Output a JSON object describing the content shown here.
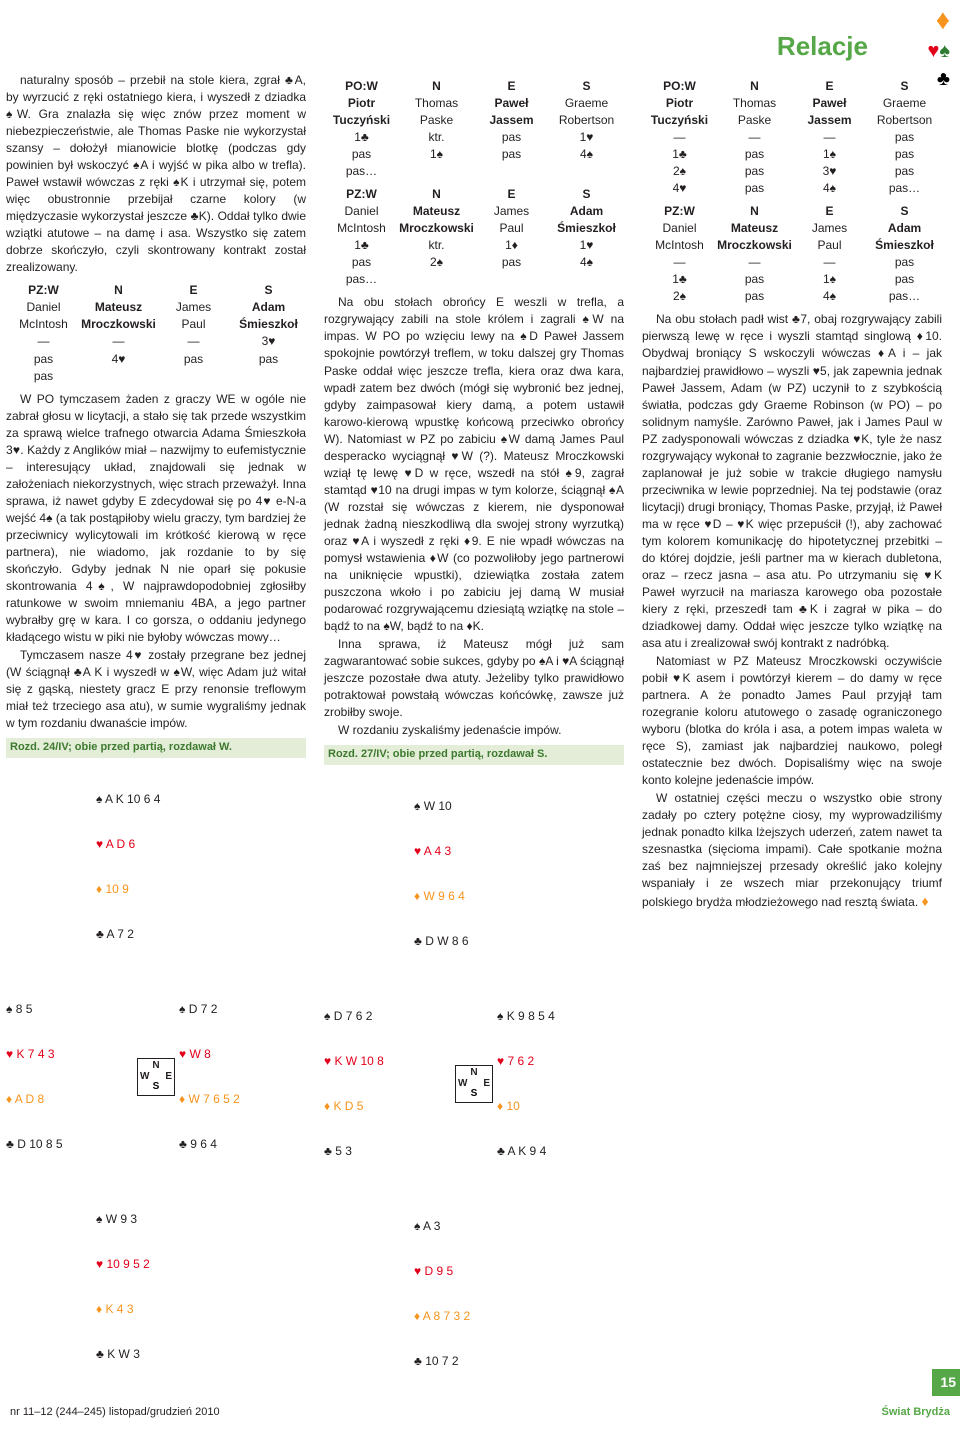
{
  "title": "Relacje",
  "logo": {
    "spade": "♠",
    "heart": "♥",
    "diamond": "♦",
    "club": "♣",
    "colors": {
      "spade": "#2e7d32",
      "heart": "#e2001a",
      "diamond": "#f7941d",
      "club": "#000"
    }
  },
  "col1": {
    "p1": "naturalny sposób – przebił na stole kiera, zgrał ♣A, by wyrzucić z ręki ostatniego kiera, i wyszedł z dziadka ♠W. Gra znalazła się więc znów przez moment w niebezpieczeństwie, ale Thomas Paske nie wykorzystał szansy – dołożył mianowicie blotkę (podczas gdy powinien był wskoczyć ♠A i wyjść w pika albo w trefla). Paweł wstawił wówczas z ręki ♠K i utrzymał się, potem więc obustronnie przebijał czarne kolory (w międzyczasie wykorzystał jeszcze ♣K). Oddał tylko dwie wziątki atutowe – na damę i asa. Wszystko się zatem dobrze skończyło, czyli skontrowany kontrakt został zrealizowany.",
    "bidPZ": {
      "hdr": [
        "PZ:W",
        "N",
        "E",
        "S"
      ],
      "names": [
        [
          "Daniel",
          "Mateusz",
          "James",
          "Adam"
        ],
        [
          "McIntosh",
          "Mroczkowski",
          "Paul",
          "Śmieszkoł"
        ]
      ],
      "rows": [
        [
          "—",
          "—",
          "—",
          "3♥"
        ],
        [
          "pas",
          "4♥",
          "pas",
          "pas"
        ],
        [
          "pas",
          "",
          "",
          ""
        ]
      ]
    },
    "p2": "W PO tymczasem żaden z graczy WE w ogóle nie zabrał głosu w licytacji, a stało się tak przede wszystkim za sprawą wielce trafnego otwarcia Adama Śmieszkoła 3♥. Każdy z Anglików miał – nazwijmy to eufemistycznie – interesujący układ, znajdowali się jednak w założeniach niekorzystnych, więc strach przeważył. Inna sprawa, iż nawet gdyby E zdecydował się po 4♥ e-N-a wejść 4♠ (a tak postąpiłoby wielu graczy, tym bardziej że przeciwnicy wylicytowali im krótkość kierową w ręce partnera), nie wiadomo, jak rozdanie to by się skończyło. Gdyby jednak N nie oparł się pokusie skontrowania 4♠, W najprawdopodobniej zgłosiłby ratunkowe w swoim mniemaniu 4BA, a jego partner wybrałby grę w kara. I co gorsza, o oddaniu jedynego kładącego wistu w piki nie byłoby wówczas mowy…",
    "p3": "Tymczasem nasze 4♥ zostały przegrane bez jednej (W ściągnął ♣A K i wyszedł w ♠W, więc Adam już witał się z gąską, niestety gracz E przy renonsie treflowym miał też trzeciego asa atu), w sumie wygraliśmy jednak w tym rozdaniu dwanaście impów.",
    "deal24": {
      "title": "Rozd. 24/IV; obie przed partią, rozdawał W.",
      "N": {
        "s": "A K 10 6 4",
        "h": "A D 6",
        "d": "10 9",
        "c": "A 7 2"
      },
      "W": {
        "s": "8 5",
        "h": "K 7 4 3",
        "d": "A D 8",
        "c": "D 10 8 5"
      },
      "E": {
        "s": "D 7 2",
        "h": "W 8",
        "d": "W 7 6 5 2",
        "c": "9 6 4"
      },
      "S": {
        "s": "W 9 3",
        "h": "10 9 5 2",
        "d": "K 4 3",
        "c": "K W 3"
      }
    }
  },
  "col2": {
    "bidPO": {
      "hdr": [
        "PO:W",
        "N",
        "E",
        "S"
      ],
      "names": [
        [
          "Piotr",
          "Thomas",
          "Paweł",
          "Graeme"
        ],
        [
          "Tuczyński",
          "Paske",
          "Jassem",
          "Robertson"
        ]
      ],
      "rows": [
        [
          "1♣",
          "ktr.",
          "pas",
          "1♥"
        ],
        [
          "pas",
          "1♠",
          "pas",
          "4♠"
        ],
        [
          "pas…",
          "",
          "",
          ""
        ]
      ]
    },
    "bidPZ": {
      "hdr": [
        "PZ:W",
        "N",
        "E",
        "S"
      ],
      "names": [
        [
          "Daniel",
          "Mateusz",
          "James",
          "Adam"
        ],
        [
          "McIntosh",
          "Mroczkowski",
          "Paul",
          "Śmieszkoł"
        ]
      ],
      "rows": [
        [
          "1♣",
          "ktr.",
          "1♦",
          "1♥"
        ],
        [
          "pas",
          "2♠",
          "pas",
          "4♠"
        ],
        [
          "pas…",
          "",
          "",
          ""
        ]
      ]
    },
    "p1": "Na obu stołach obrońcy E weszli w trefla, a rozgrywający zabili na stole królem i zagrali ♠W na impas. W PO po wzięciu lewy na ♠D Paweł Jassem spokojnie powtórzył treflem, w toku dalszej gry Thomas Paske oddał więc jeszcze trefla, kiera oraz dwa kara, wpadł zatem bez dwóch (mógł się wybronić bez jednej, gdyby zaimpasował kiery damą, a potem ustawił karowo-kierową wpustkę końcową przeciwko obrońcy W). Natomiast w PZ po zabiciu ♠W damą James Paul desperacko wyciągnął ♥W (?). Mateusz Mroczkowski wziął tę lewę ♥D w ręce, wszedł na stół ♠9, zagrał stamtąd ♥10 na drugi impas w tym kolorze, ściągnął ♠A (W rozstał się wówczas z kierem, nie dysponował jednak żadną nieszkodliwą dla swojej strony wyrzutką) oraz ♥A i wyszedł z ręki ♦9. E nie wpadł wówczas na pomysł wstawienia ♦W (co pozwoliłoby jego partnerowi na uniknięcie wpustki), dziewiątka została zatem puszczona wkoło i po zabiciu jej damą W musiał podarować rozgrywającemu dziesiątą wziątkę na stole – bądź to na ♠W, bądź to na ♦K.",
    "p2": "Inna sprawa, iż Mateusz mógł już sam zagwarantować sobie sukces, gdyby po ♠A i ♥A ściągnął jeszcze pozostałe dwa atuty. Jeżeliby tylko prawidłowo potraktował powstałą wówczas końcówkę, zawsze już zrobiłby swoje.",
    "p3": "W rozdaniu zyskaliśmy jedenaście impów.",
    "deal27": {
      "title": "Rozd. 27/IV; obie przed partią, rozdawał S.",
      "N": {
        "s": "W 10",
        "h": "A 4 3",
        "d": "W 9 6 4",
        "c": "D W 8 6"
      },
      "W": {
        "s": "D 7 6 2",
        "h": "K W 10 8",
        "d": "K D 5",
        "c": "5 3"
      },
      "E": {
        "s": "K 9 8 5 4",
        "h": "7 6 2",
        "d": "10",
        "c": "A K 9 4"
      },
      "S": {
        "s": "A 3",
        "h": "D 9 5",
        "d": "A 8 7 3 2",
        "c": "10 7 2"
      }
    }
  },
  "col3": {
    "bidPO": {
      "hdr": [
        "PO:W",
        "N",
        "E",
        "S"
      ],
      "names": [
        [
          "Piotr",
          "Thomas",
          "Paweł",
          "Graeme"
        ],
        [
          "Tuczyński",
          "Paske",
          "Jassem",
          "Robertson"
        ]
      ],
      "rows": [
        [
          "—",
          "—",
          "—",
          "pas"
        ],
        [
          "1♣",
          "pas",
          "1♠",
          "pas"
        ],
        [
          "2♠",
          "pas",
          "3♥",
          "pas"
        ],
        [
          "4♥",
          "pas",
          "4♠",
          "pas…"
        ]
      ]
    },
    "bidPZ": {
      "hdr": [
        "PZ:W",
        "N",
        "E",
        "S"
      ],
      "names": [
        [
          "Daniel",
          "Mateusz",
          "James",
          "Adam"
        ],
        [
          "McIntosh",
          "Mroczkowski",
          "Paul",
          "Śmieszkoł"
        ]
      ],
      "rows": [
        [
          "—",
          "—",
          "—",
          "pas"
        ],
        [
          "1♣",
          "pas",
          "1♠",
          "pas"
        ],
        [
          "2♠",
          "pas",
          "4♠",
          "pas…"
        ]
      ]
    },
    "p1": "Na obu stołach padł wist ♣7, obaj rozgrywający zabili pierwszą lewę w ręce i wyszli stamtąd singlową ♦10. Obydwaj broniący S wskoczyli wówczas ♦A i – jak najbardziej prawidłowo – wyszli ♥5, jak zapewnia jednak Paweł Jassem, Adam (w PZ) uczynił to z szybkością światła, podczas gdy Graeme Robinson (w PO) – po solidnym namyśle. Zarówno Paweł, jak i James Paul w PZ zadysponowali wówczas z dziadka ♥K, tyle że nasz rozgrywający wykonał to zagranie bezzwłocznie, jako że zaplanował je już sobie w trakcie długiego namysłu przeciwnika w lewie poprzedniej. Na tej podstawie (oraz licytacji) drugi broniący, Thomas Paske, przyjął, iż Paweł ma w ręce ♥D – ♥K więc przepuścił (!), aby zachować tym kolorem komunikację do hipotetycznej przebitki – do której dojdzie, jeśli partner ma w kierach dubletona, oraz – rzecz jasna – asa atu. Po utrzymaniu się ♥K Paweł wyrzucił na mariasza karowego oba pozostałe kiery z ręki, przeszedł tam ♣K i zagrał w pika – do dziadkowej damy. Oddał więc jeszcze tylko wziątkę na asa atu i zrealizował swój kontrakt z nadróbką.",
    "p2": "Natomiast w PZ Mateusz Mroczkowski oczywiście pobił ♥K asem i powtórzył kierem – do damy w ręce partnera. A że ponadto James Paul przyjął tam rozegranie koloru atutowego o zasadę ograniczonego wyboru (blotka do króla i asa, a potem impas waleta w ręce S), zamiast jak najbardziej naukowo, poległ ostatecznie bez dwóch. Dopisaliśmy więc na swoje konto kolejne jedenaście impów.",
    "p3": "W ostatniej części meczu o wszystko obie strony zadały po cztery potężne ciosy, my wyprowadziliśmy jednak ponadto kilka lżejszych uderzeń, zatem nawet ta szesnastka (sięcioma impami). Całe spotkanie można zaś bez najmniejszej przesady określić jako kolejny wspaniały i ze wszech miar przekonujący triumf polskiego brydża młodzieżowego nad resztą świata."
  },
  "footer": {
    "issue": "nr 11–12 (244–245) listopad/grudzień 2010",
    "mag": "Świat Brydża",
    "page": "15"
  }
}
